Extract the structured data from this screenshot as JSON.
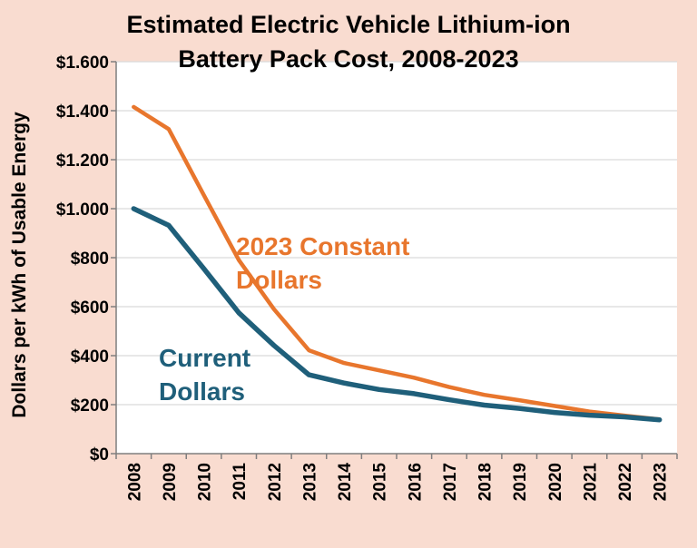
{
  "chart_data": {
    "type": "line",
    "title_lines": [
      "Estimated Electric Vehicle Lithium-ion",
      "Battery Pack Cost, 2008-2023"
    ],
    "ylabel": "Dollars per kWh of Usable Energy",
    "xlabel": "",
    "categories": [
      "2008",
      "2009",
      "2010",
      "2011",
      "2012",
      "2013",
      "2014",
      "2015",
      "2016",
      "2017",
      "2018",
      "2019",
      "2020",
      "2021",
      "2022",
      "2023"
    ],
    "ylim": [
      0,
      1600
    ],
    "yticks": [
      0,
      200,
      400,
      600,
      800,
      1000,
      1200,
      1400,
      1600
    ],
    "ytick_labels": [
      "$0",
      "$200",
      "$400",
      "$600",
      "$800",
      "$1.000",
      "$1.200",
      "$1.400",
      "$1.600"
    ],
    "grid": true,
    "series": [
      {
        "name": "2023 Constant Dollars",
        "label_lines": [
          "2023 Constant",
          "Dollars"
        ],
        "color": "#e8762d",
        "values": [
          1415,
          1325,
          1055,
          790,
          590,
          422,
          370,
          340,
          310,
          272,
          240,
          218,
          195,
          172,
          155,
          140
        ]
      },
      {
        "name": "Current Dollars",
        "label_lines": [
          "Current",
          "Dollars"
        ],
        "color": "#1f5f7a",
        "values": [
          1000,
          932,
          755,
          575,
          442,
          322,
          288,
          262,
          245,
          220,
          198,
          185,
          168,
          157,
          150,
          138
        ]
      }
    ]
  }
}
